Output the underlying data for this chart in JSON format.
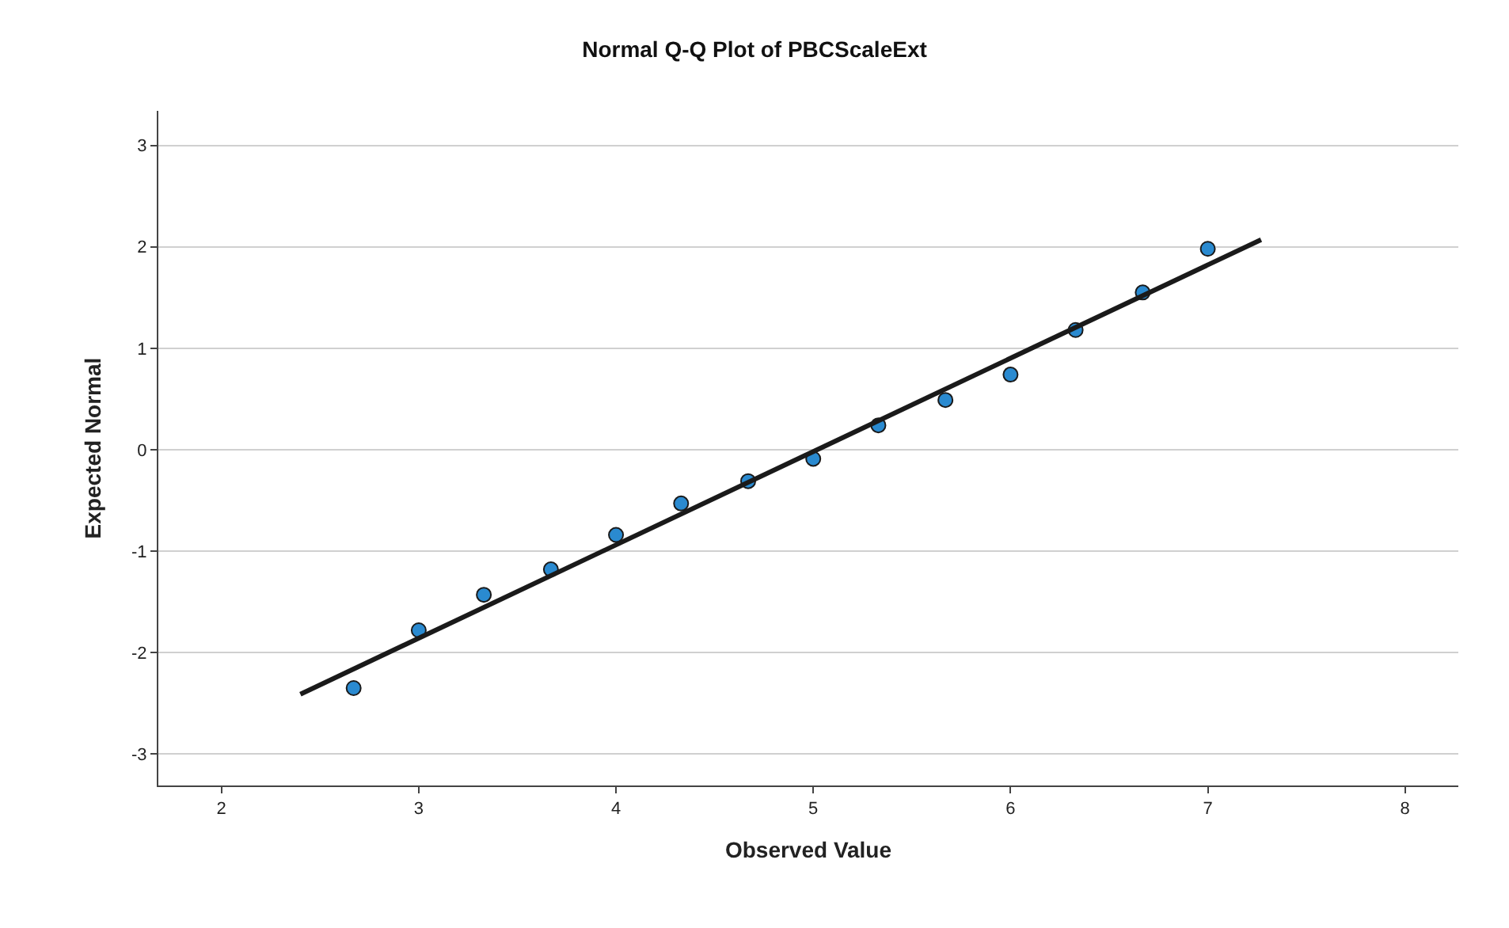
{
  "chart_data": {
    "type": "scatter",
    "title": "Normal Q-Q Plot of PBCScaleExt",
    "xlabel": "Observed Value",
    "ylabel": "Expected Normal",
    "series": [
      {
        "color": "#2a8ad0",
        "marker": "circle",
        "x": [
          2.67,
          3,
          3.33,
          3.67,
          4,
          4.33,
          4.67,
          5,
          5.33,
          5.67,
          6,
          6.33,
          6.67,
          7
        ],
        "values": [
          -2.35,
          -1.78,
          -1.43,
          -1.18,
          -0.84,
          -0.53,
          -0.31,
          -0.09,
          0.24,
          0.49,
          0.74,
          1.18,
          1.55,
          1.98
        ]
      },
      {
        "type": "line",
        "color": "#1a1a1a",
        "marker": "none",
        "line_style": "solid",
        "x": [
          2.4,
          7.27
        ],
        "values": [
          -2.41,
          2.07
        ]
      }
    ],
    "xlim": [
      1.68,
      8.27
    ],
    "ylim": [
      -3.31,
      3.34
    ],
    "xticks": [
      2,
      3,
      4,
      5,
      6,
      7,
      8
    ],
    "yticks": [
      -3,
      -2,
      -1,
      0,
      1,
      2,
      3
    ],
    "grid": "y",
    "legend": false
  }
}
